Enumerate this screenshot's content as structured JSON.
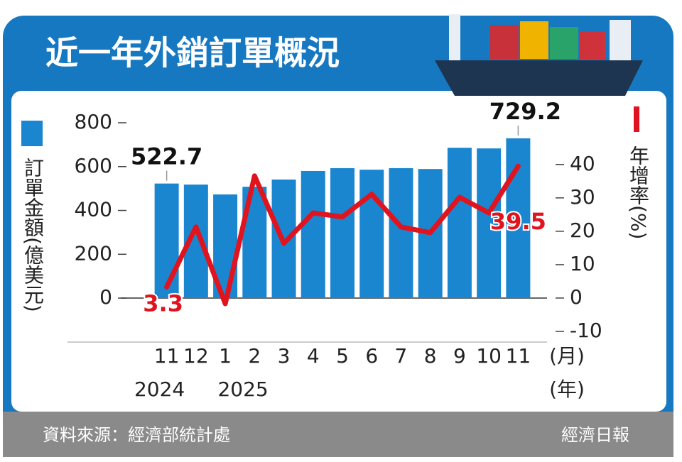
{
  "header": {
    "title": "近一年外銷訂單概況"
  },
  "chart_data": {
    "type": "bar",
    "categories": [
      "11",
      "12",
      "1",
      "2",
      "3",
      "4",
      "5",
      "6",
      "7",
      "8",
      "9",
      "10",
      "11"
    ],
    "year_labels": [
      "2024",
      null,
      "2025",
      null,
      null,
      null,
      null,
      null,
      null,
      null,
      null,
      null,
      null
    ],
    "x_unit": "(月)",
    "year_unit": "(年)",
    "series": [
      {
        "name": "訂單金額(億美元)",
        "type": "bar",
        "color": "#1a86d0",
        "values": [
          522.7,
          518,
          473,
          508,
          541,
          580,
          593,
          586,
          593,
          589,
          686,
          683,
          729.2
        ]
      },
      {
        "name": "年增率(%)",
        "type": "line",
        "axis": "y2",
        "color": "#e0141e",
        "values": [
          3.3,
          21.3,
          -1.7,
          36.6,
          16.4,
          25.5,
          24.3,
          31.1,
          21.3,
          19.6,
          30.2,
          25.5,
          39.5
        ]
      }
    ],
    "ylim": [
      -152,
      800
    ],
    "yticks": [
      0,
      200,
      400,
      600,
      800
    ],
    "y2lim": [
      -10,
      52.5
    ],
    "y2ticks": [
      -10,
      0,
      10,
      20,
      30,
      40
    ],
    "data_labels": [
      "first",
      "last"
    ]
  },
  "footer": {
    "source": "資料來源：經濟部統計處",
    "brand": "經濟日報"
  }
}
